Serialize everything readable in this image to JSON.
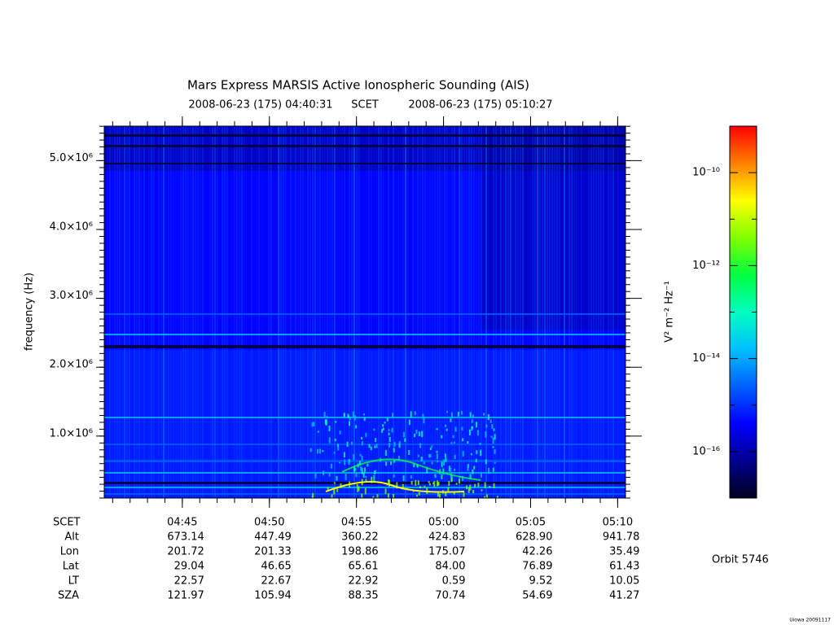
{
  "chart_data": {
    "type": "spectrogram",
    "title": "Mars Express MARSIS Active Ionospheric Sounding (AIS)",
    "start_time": "2008-06-23 (175) 04:40:31",
    "time_system": "SCET",
    "end_time": "2008-06-23 (175) 05:10:27",
    "ylabel": "frequency (Hz)",
    "xlim": [
      16831,
      18627
    ],
    "xticks": [
      {
        "value": 17100,
        "label": "04:45"
      },
      {
        "value": 17400,
        "label": "04:50"
      },
      {
        "value": 17700,
        "label": "04:55"
      },
      {
        "value": 18000,
        "label": "05:00"
      },
      {
        "value": 18300,
        "label": "05:05"
      },
      {
        "value": 18600,
        "label": "05:10"
      }
    ],
    "ylim": [
      100000,
      5500000
    ],
    "yticks": [
      {
        "value": 1000000,
        "label": "1.0×10⁶"
      },
      {
        "value": 2000000,
        "label": "2.0×10⁶"
      },
      {
        "value": 3000000,
        "label": "3.0×10⁶"
      },
      {
        "value": 4000000,
        "label": "4.0×10⁶"
      },
      {
        "value": 5000000,
        "label": "5.0×10⁶"
      }
    ],
    "colormap": [
      "#000020",
      "#000090",
      "#0000ff",
      "#0060ff",
      "#00c0ff",
      "#00ffc0",
      "#00ff40",
      "#80ff00",
      "#ffff00",
      "#ff8000",
      "#ff0000"
    ],
    "colorbar": {
      "label": "V² m⁻² Hz⁻¹",
      "lim": [
        -17,
        -9
      ],
      "ticks": [
        {
          "value": -16,
          "label": "10⁻¹⁶"
        },
        {
          "value": -14,
          "label": "10⁻¹⁴"
        },
        {
          "value": -12,
          "label": "10⁻¹²"
        },
        {
          "value": -10,
          "label": "10⁻¹⁰"
        }
      ]
    },
    "ephemeris": {
      "time_label": "SCET",
      "rows": [
        {
          "label": "Alt",
          "values": [
            "673.14",
            "447.49",
            "360.22",
            "424.83",
            "628.90",
            "941.78"
          ]
        },
        {
          "label": "Lon",
          "values": [
            "201.72",
            "201.33",
            "198.86",
            "175.07",
            "42.26",
            "35.49"
          ]
        },
        {
          "label": "Lat",
          "values": [
            "29.04",
            "46.65",
            "65.61",
            "84.00",
            "76.89",
            "61.43"
          ]
        },
        {
          "label": "LT",
          "values": [
            "22.57",
            "22.67",
            "22.92",
            "0.59",
            "9.52",
            "10.05"
          ]
        },
        {
          "label": "SZA",
          "values": [
            "121.97",
            "105.94",
            "88.35",
            "70.74",
            "54.69",
            "41.27"
          ]
        }
      ]
    },
    "orbit": "Orbit 5746",
    "credit": "Uiowa 20091117"
  }
}
